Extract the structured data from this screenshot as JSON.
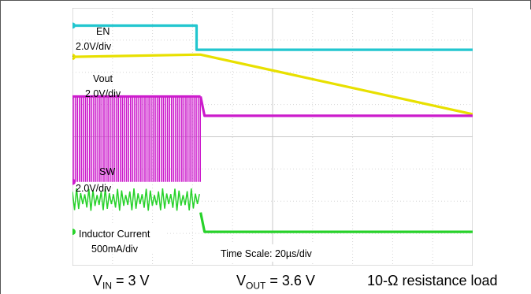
{
  "chart_data": {
    "type": "line",
    "title": "",
    "grid": true,
    "annotations": {
      "en_name": "EN",
      "en_scale": "2.0V/div",
      "vout_name": "Vout",
      "vout_scale": "2.0V/div",
      "sw_name": "SW",
      "sw_scale": "2.0V/div",
      "il_name": "Inductor Current",
      "il_scale": "500mA/div",
      "time_scale": "Time Scale: 20µs/div"
    },
    "x": {
      "divisions": 10,
      "event_division": 3.2
    },
    "y": {
      "divisions": 8
    },
    "series": [
      {
        "channel_marker": "",
        "color": "#22c6cf",
        "points": [
          [
            0,
            0.55
          ],
          [
            3.1,
            0.55
          ],
          [
            3.1,
            1.3
          ],
          [
            10,
            1.3
          ]
        ]
      },
      {
        "channel_marker": "2",
        "color": "#e8e000",
        "points": [
          [
            0,
            1.52
          ],
          [
            3.1,
            1.45
          ],
          [
            3.2,
            1.45
          ],
          [
            10,
            3.3
          ]
        ]
      },
      {
        "channel_marker": "1",
        "color": "#cc1bcc",
        "switching_until": 3.2,
        "high_level": 2.75,
        "low_level": 5.4,
        "points": [
          [
            3.2,
            2.75
          ],
          [
            3.3,
            3.35
          ],
          [
            10,
            3.35
          ]
        ]
      },
      {
        "channel_marker": "",
        "color": "#27d22a",
        "ripple_until": 3.2,
        "ripple_center": 5.95,
        "ripple_amplitude": 0.35,
        "points": [
          [
            3.2,
            6.35
          ],
          [
            3.3,
            6.95
          ],
          [
            10,
            6.95
          ]
        ]
      }
    ]
  },
  "caption": {
    "vin_main": "V",
    "vin_sub": "IN",
    "vin_value": " = 3 V",
    "vout_main": "V",
    "vout_sub": "OUT",
    "vout_value": " = 3.6 V",
    "load": "10-Ω resistance load"
  }
}
